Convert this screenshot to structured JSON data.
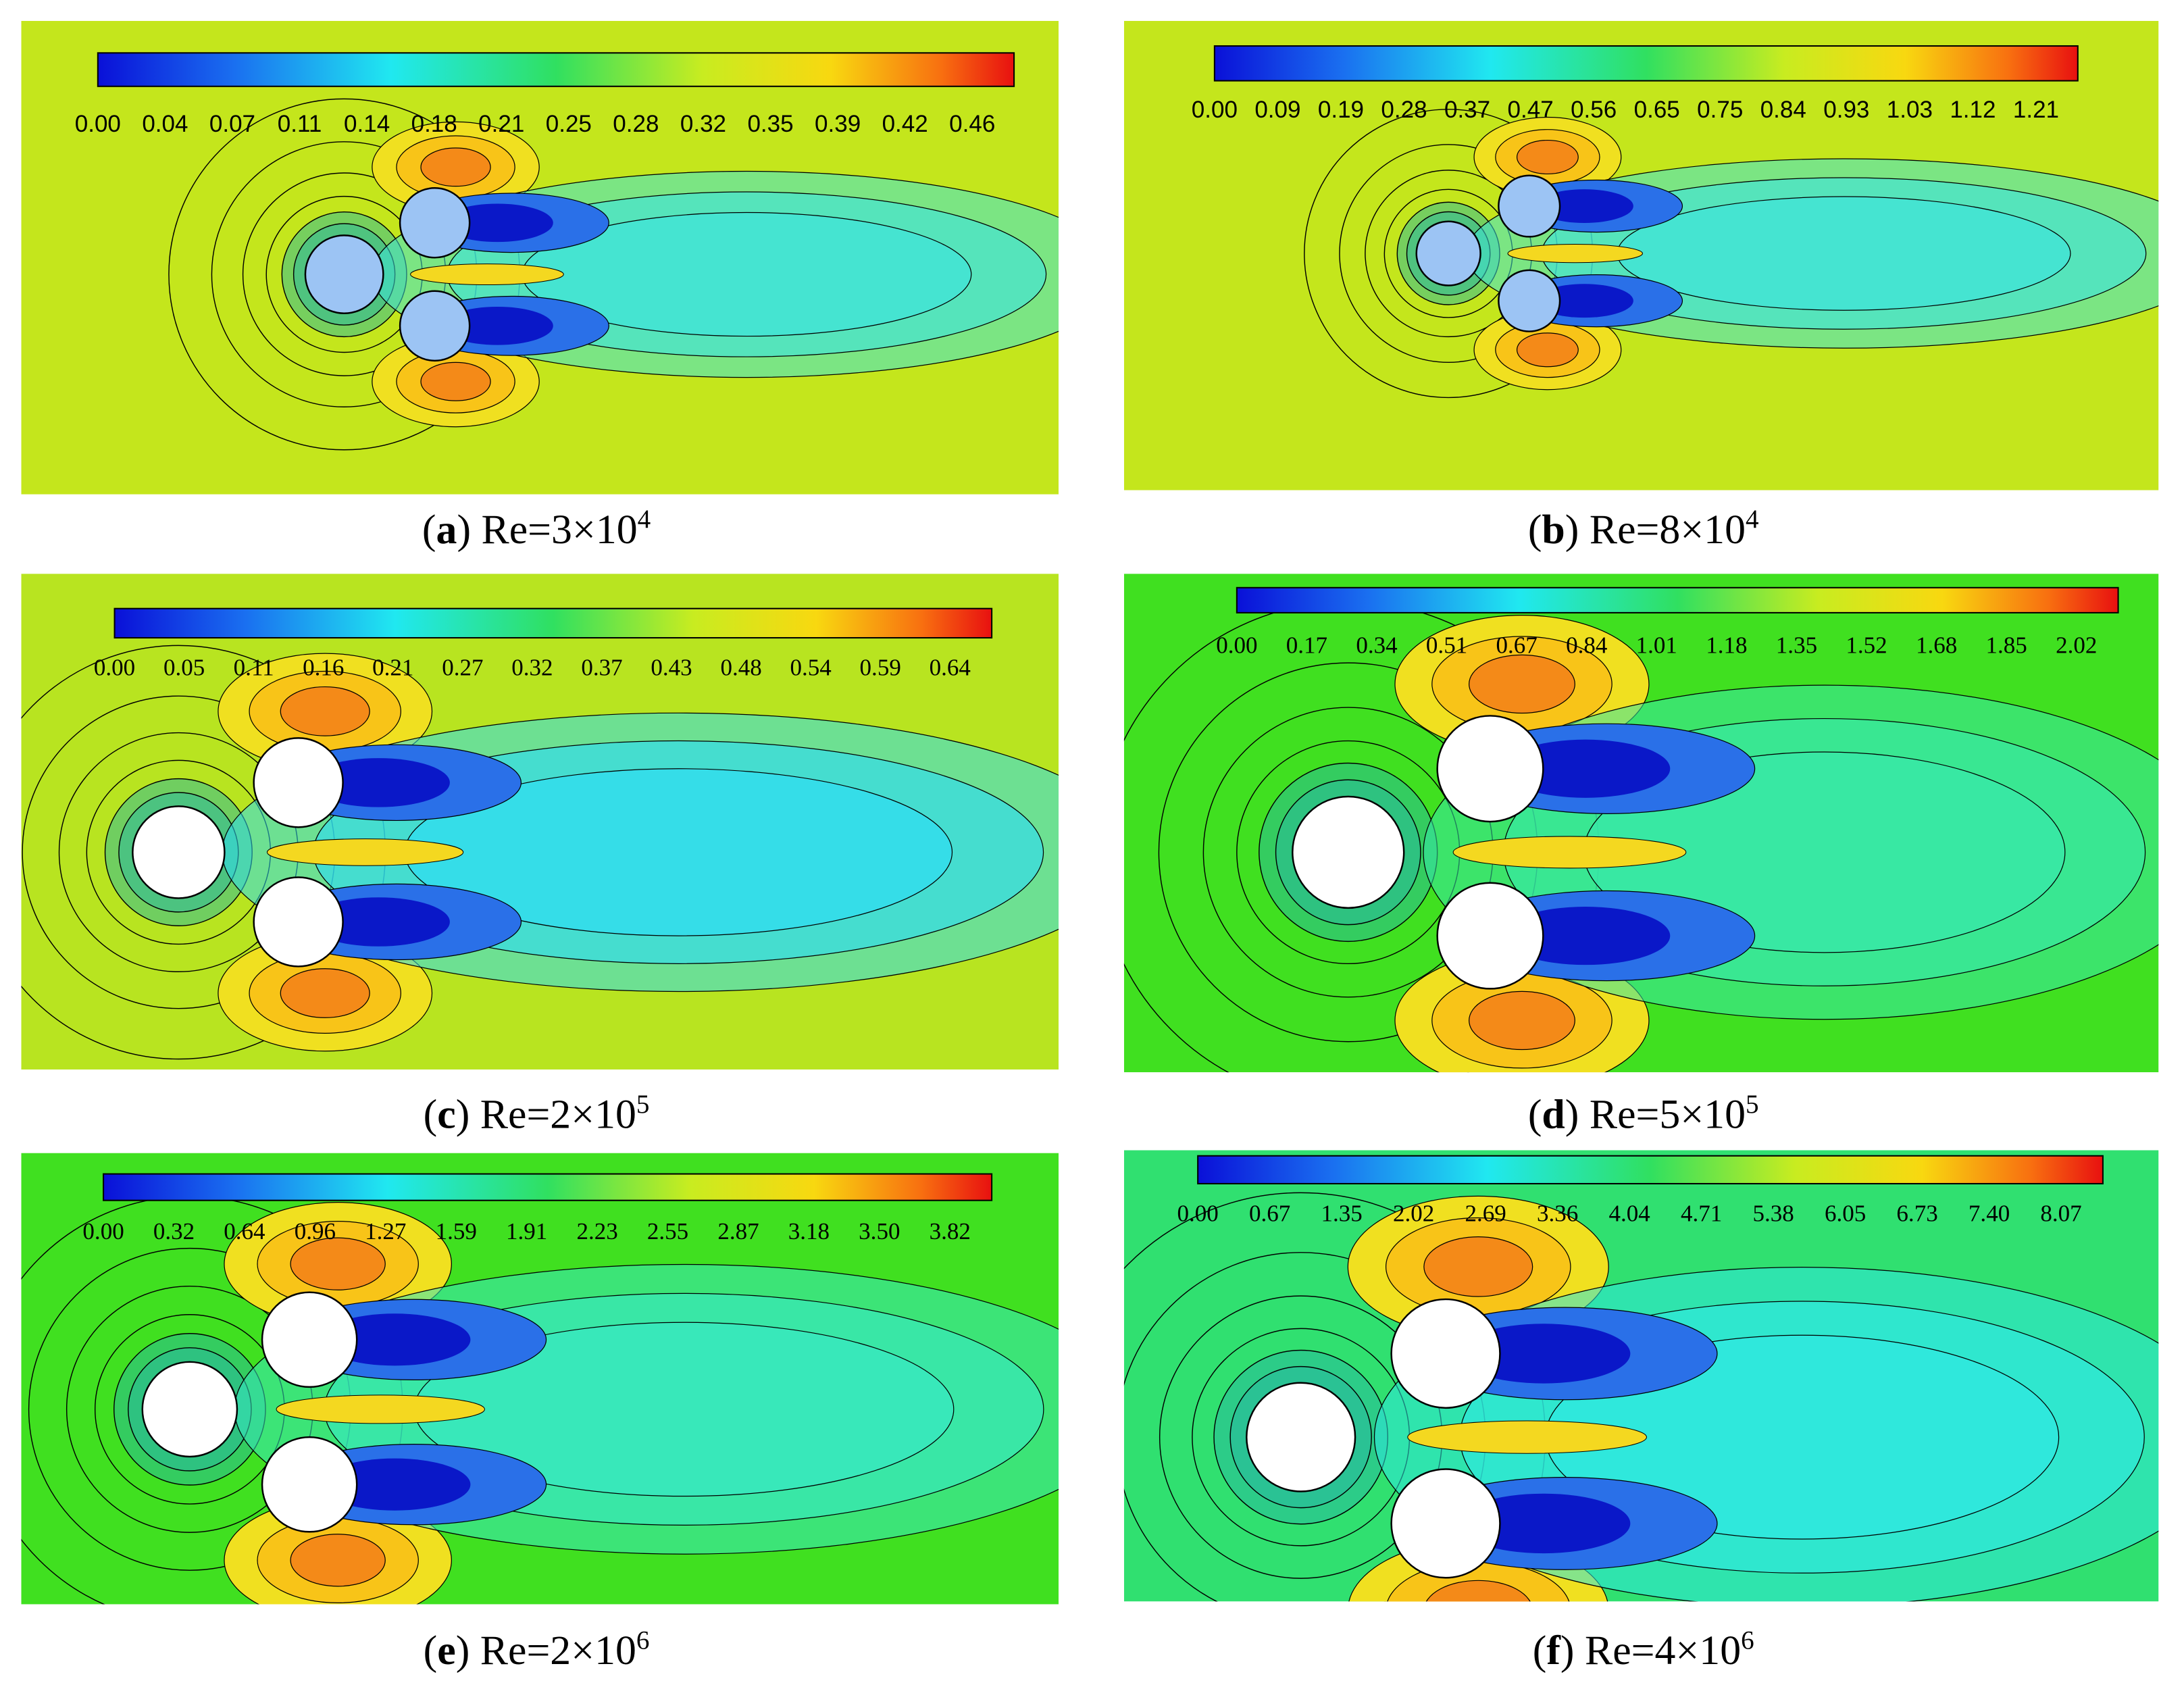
{
  "panels": [
    {
      "caption": {
        "open": "(",
        "letter": "a",
        "close": ")",
        "text": " Re=3×10",
        "exponent": "4"
      },
      "colorbar_ticks": [
        "0.00",
        "0.04",
        "0.07",
        "0.11",
        "0.14",
        "0.18",
        "0.21",
        "0.25",
        "0.28",
        "0.32",
        "0.35",
        "0.39",
        "0.42",
        "0.46"
      ]
    },
    {
      "caption": {
        "open": "(",
        "letter": "b",
        "close": ")",
        "text": " Re=8×10",
        "exponent": "4"
      },
      "colorbar_ticks": [
        "0.00",
        "0.09",
        "0.19",
        "0.28",
        "0.37",
        "0.47",
        "0.56",
        "0.65",
        "0.75",
        "0.84",
        "0.93",
        "1.03",
        "1.12",
        "1.21"
      ]
    },
    {
      "caption": {
        "open": "(",
        "letter": "c",
        "close": ")",
        "text": " Re=2×10",
        "exponent": "5"
      },
      "colorbar_ticks": [
        "0.00",
        "0.05",
        "0.11",
        "0.16",
        "0.21",
        "0.27",
        "0.32",
        "0.37",
        "0.43",
        "0.48",
        "0.54",
        "0.59",
        "0.64"
      ]
    },
    {
      "caption": {
        "open": "(",
        "letter": "d",
        "close": ")",
        "text": " Re=5×10",
        "exponent": "5"
      },
      "colorbar_ticks": [
        "0.00",
        "0.17",
        "0.34",
        "0.51",
        "0.67",
        "0.84",
        "1.01",
        "1.18",
        "1.35",
        "1.52",
        "1.68",
        "1.85",
        "2.02"
      ]
    },
    {
      "caption": {
        "open": "(",
        "letter": "e",
        "close": ")",
        "text": " Re=2×10",
        "exponent": "6"
      },
      "colorbar_ticks": [
        "0.00",
        "0.32",
        "0.64",
        "0.96",
        "1.27",
        "1.59",
        "1.91",
        "2.23",
        "2.55",
        "2.87",
        "3.18",
        "3.50",
        "3.82"
      ]
    },
    {
      "caption": {
        "open": "(",
        "letter": "f",
        "close": ")",
        "text": " Re=4×10",
        "exponent": "6"
      },
      "colorbar_ticks": [
        "0.00",
        "0.67",
        "1.35",
        "2.02",
        "2.69",
        "3.36",
        "4.04",
        "4.71",
        "5.38",
        "6.05",
        "6.73",
        "7.40",
        "8.07"
      ]
    }
  ]
}
